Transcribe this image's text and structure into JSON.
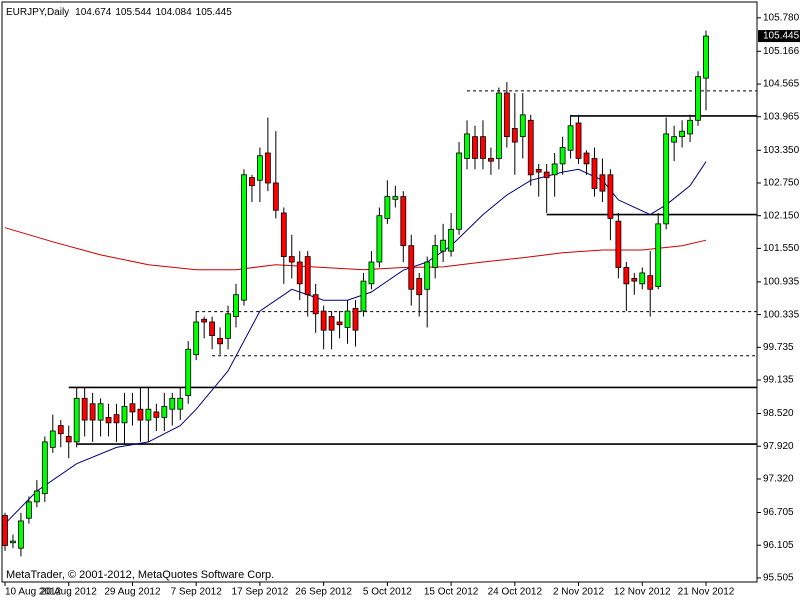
{
  "chart_data": {
    "type": "candlestick",
    "title": "EURJPY,Daily",
    "footer": "MetaTrader, © 2001-2012, MetaQuotes Software Corp.",
    "up_color": "#00ff00",
    "down_color": "#ff0000",
    "categories": [
      "10 Aug 2012",
      null,
      null,
      null,
      null,
      null,
      null,
      null,
      "20 Aug 2012",
      null,
      null,
      null,
      null,
      null,
      null,
      null,
      "29 Aug 2012",
      null,
      null,
      null,
      null,
      null,
      null,
      null,
      "7 Sep 2012",
      null,
      null,
      null,
      null,
      null,
      null,
      null,
      "17 Sep 2012",
      null,
      null,
      null,
      null,
      null,
      null,
      null,
      "26 Sep 2012",
      null,
      null,
      null,
      null,
      null,
      null,
      null,
      "5 Oct 2012",
      null,
      null,
      null,
      null,
      null,
      null,
      null,
      "15 Oct 2012",
      null,
      null,
      null,
      null,
      null,
      null,
      null,
      "24 Oct 2012",
      null,
      null,
      null,
      null,
      null,
      null,
      null,
      "2 Nov 2012",
      null,
      null,
      null,
      null,
      null,
      null,
      null,
      "12 Nov 2012",
      null,
      null,
      null,
      null,
      null,
      null,
      null,
      "21 Nov 2012"
    ],
    "open": [
      96.65,
      96.15,
      96.05,
      96.6,
      96.9,
      97.05,
      97.9,
      98.3,
      98.1,
      98.0,
      98.8,
      98.7,
      98.4,
      98.45,
      98.5,
      98.35,
      98.7,
      98.6,
      98.4,
      98.55,
      98.45,
      98.6,
      98.6,
      98.85,
      99.6,
      100.25,
      100.2,
      99.9,
      99.9,
      100.3,
      100.6,
      102.85,
      102.8,
      103.3,
      102.75,
      102.2,
      101.4,
      101.3,
      101.4,
      100.7,
      100.4,
      100.3,
      100.2,
      100.1,
      100.45,
      100.4,
      100.9,
      101.3,
      102.1,
      102.45,
      102.5,
      101.6,
      101.0,
      100.8,
      101.2,
      101.5,
      101.5,
      101.9,
      103.2,
      103.6,
      103.6,
      103.2,
      103.2,
      104.4,
      103.75,
      103.6,
      103.9,
      103.0,
      102.95,
      102.9,
      103.1,
      103.35,
      103.85,
      103.3,
      103.2,
      102.9,
      102.9,
      102.05,
      101.2,
      101.0,
      100.9,
      101.05,
      100.85,
      102.0,
      103.5,
      103.6,
      103.65,
      103.9,
      104.674
    ],
    "high": [
      96.7,
      96.3,
      96.7,
      97.0,
      97.3,
      98.1,
      98.5,
      98.4,
      98.3,
      99.0,
      99.0,
      98.9,
      98.8,
      98.7,
      98.7,
      98.9,
      98.9,
      99.0,
      99.0,
      98.7,
      98.9,
      98.9,
      99.0,
      99.85,
      100.4,
      100.3,
      100.3,
      100.1,
      100.5,
      100.9,
      103.0,
      102.9,
      103.4,
      103.95,
      103.7,
      102.3,
      101.8,
      101.5,
      101.5,
      100.9,
      100.5,
      100.4,
      100.4,
      100.6,
      100.6,
      101.1,
      101.5,
      102.3,
      102.8,
      102.7,
      102.6,
      101.8,
      101.1,
      101.4,
      101.8,
      102.0,
      102.2,
      103.5,
      103.9,
      103.8,
      103.9,
      103.4,
      104.5,
      104.6,
      104.4,
      104.4,
      104.0,
      103.1,
      103.1,
      103.3,
      103.6,
      104.0,
      104.0,
      103.35,
      103.4,
      103.2,
      103.0,
      102.2,
      101.3,
      101.1,
      101.2,
      101.5,
      102.2,
      103.95,
      103.8,
      103.9,
      104.0,
      104.8,
      105.544
    ],
    "low": [
      96.0,
      96.05,
      95.9,
      96.5,
      96.8,
      96.9,
      97.8,
      97.9,
      97.7,
      97.9,
      98.1,
      98.0,
      98.1,
      98.1,
      98.0,
      97.95,
      98.3,
      98.0,
      98.0,
      98.2,
      98.2,
      98.3,
      98.4,
      98.7,
      99.5,
      99.9,
      99.7,
      99.6,
      99.7,
      100.1,
      100.5,
      102.4,
      102.4,
      102.6,
      102.1,
      100.9,
      101.0,
      100.6,
      100.3,
      100.0,
      99.7,
      99.7,
      99.9,
      99.8,
      99.75,
      100.3,
      100.8,
      101.2,
      102.0,
      102.3,
      101.3,
      100.5,
      100.3,
      100.1,
      101.0,
      101.3,
      101.4,
      101.8,
      103.0,
      103.0,
      103.0,
      102.9,
      103.0,
      103.4,
      102.9,
      103.2,
      102.7,
      102.5,
      102.2,
      102.5,
      102.9,
      103.2,
      103.1,
      102.9,
      102.5,
      102.4,
      101.7,
      101.0,
      100.4,
      100.7,
      100.8,
      100.3,
      100.8,
      101.9,
      103.15,
      103.4,
      103.5,
      103.8,
      104.084
    ],
    "close": [
      96.1,
      96.18,
      96.55,
      96.9,
      97.1,
      98.0,
      98.2,
      98.15,
      98.0,
      98.8,
      98.4,
      98.4,
      98.7,
      98.35,
      98.35,
      98.65,
      98.55,
      98.4,
      98.6,
      98.45,
      98.65,
      98.8,
      98.8,
      99.7,
      100.2,
      100.2,
      99.95,
      99.8,
      100.35,
      100.7,
      102.9,
      102.7,
      103.25,
      102.75,
      102.25,
      101.4,
      101.3,
      100.9,
      100.7,
      100.35,
      100.05,
      100.05,
      100.15,
      100.4,
      100.05,
      100.95,
      101.3,
      102.15,
      102.5,
      102.5,
      101.6,
      100.8,
      100.7,
      101.3,
      101.6,
      101.7,
      101.9,
      103.3,
      103.65,
      103.2,
      103.2,
      103.15,
      104.4,
      103.6,
      103.5,
      104.0,
      102.9,
      102.95,
      102.85,
      103.1,
      103.4,
      103.8,
      103.2,
      103.1,
      102.65,
      102.6,
      102.1,
      101.2,
      100.9,
      100.95,
      101.1,
      100.8,
      102.0,
      103.65,
      103.6,
      103.7,
      103.9,
      104.7,
      105.445
    ],
    "overlays": [
      {
        "color": "#000080",
        "x": [
          0,
          4,
          9,
          14,
          18,
          22,
          24,
          28,
          32,
          36,
          40,
          43,
          46,
          50,
          53,
          56,
          60,
          63,
          66,
          70,
          72,
          75,
          77,
          81,
          83,
          86,
          88
        ],
        "values": [
          96.5,
          97.1,
          97.6,
          97.9,
          98.0,
          98.3,
          98.6,
          99.3,
          100.4,
          100.8,
          100.6,
          100.6,
          100.75,
          101.15,
          101.3,
          101.6,
          102.17,
          102.53,
          102.8,
          102.95,
          103.0,
          102.8,
          102.44,
          102.17,
          102.35,
          102.7,
          103.14
        ]
      },
      {
        "color": "#cc0000",
        "x": [
          0,
          6,
          12,
          18,
          24,
          29,
          34,
          40,
          45,
          50,
          55,
          60,
          65,
          70,
          75,
          80,
          85,
          88
        ],
        "values": [
          101.93,
          101.67,
          101.43,
          101.25,
          101.16,
          101.16,
          101.25,
          101.2,
          101.16,
          101.2,
          101.21,
          101.3,
          101.38,
          101.47,
          101.52,
          101.52,
          101.6,
          101.7
        ]
      }
    ],
    "levels": [
      {
        "value": 99.0,
        "start": 8,
        "style": "solid"
      },
      {
        "value": 97.96,
        "start": 9,
        "style": "solid"
      },
      {
        "value": 103.98,
        "start": 71,
        "style": "solid"
      },
      {
        "value": 102.17,
        "start": 68,
        "style": "solid"
      },
      {
        "value": 104.44,
        "start": 58,
        "style": "dashed"
      },
      {
        "value": 100.39,
        "start": 24,
        "style": "dashed"
      },
      {
        "value": 99.58,
        "start": 26,
        "style": "dashed"
      }
    ],
    "ylim": [
      95.43,
      106.07
    ],
    "yticks": [
      {
        "value": 105.78,
        "label": "105.780"
      },
      105.166,
      104.565,
      103.965,
      {
        "value": 103.35,
        "label": "103.350"
      },
      {
        "value": 102.75,
        "label": "102.750"
      },
      {
        "value": 102.15,
        "label": "102.150"
      },
      {
        "value": 101.55,
        "label": "101.550"
      },
      100.935,
      100.335,
      99.735,
      99.135,
      {
        "value": 98.52,
        "label": "98.520"
      },
      {
        "value": 97.92,
        "label": "97.920"
      },
      {
        "value": 97.32,
        "label": "97.320"
      },
      96.705,
      96.105,
      95.505
    ]
  }
}
